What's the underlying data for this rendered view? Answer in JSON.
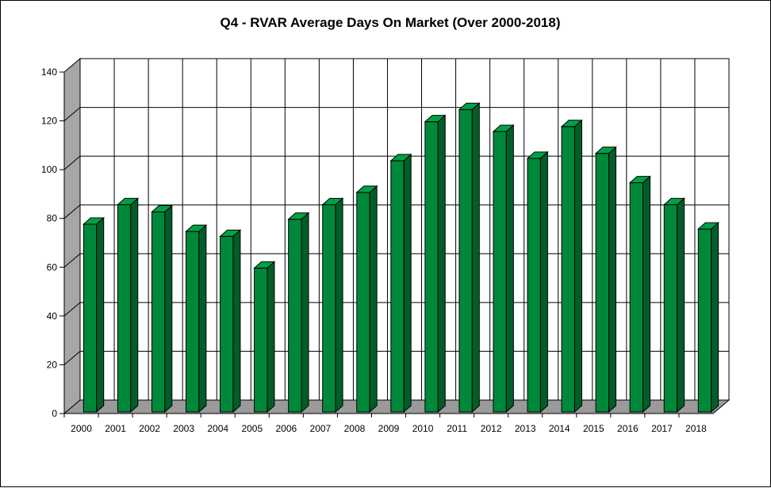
{
  "chart_data": {
    "type": "bar",
    "title": "Q4 - RVAR Average Days On Market (Over 2000-2018)",
    "xlabel": "",
    "ylabel": "",
    "categories": [
      "2000",
      "2001",
      "2002",
      "2003",
      "2004",
      "2005",
      "2006",
      "2007",
      "2008",
      "2009",
      "2010",
      "2011",
      "2012",
      "2013",
      "2014",
      "2015",
      "2016",
      "2017",
      "2018"
    ],
    "values": [
      77,
      85,
      82,
      74,
      72,
      59,
      79,
      85,
      90,
      103,
      119,
      124,
      115,
      104,
      117,
      106,
      94,
      85,
      75
    ],
    "ylim": [
      0,
      140
    ],
    "yticks": [
      0,
      20,
      40,
      60,
      80,
      100,
      120,
      140
    ],
    "grid": true,
    "legend": "none",
    "style": "3d-column",
    "colors": {
      "bar_front": "#00883a",
      "bar_side": "#005e28",
      "bar_top": "#00a146",
      "wall": "#ffffff",
      "left_wall": "#a6a6a6",
      "floor": "#9a9a9a",
      "grid": "#000000"
    }
  }
}
